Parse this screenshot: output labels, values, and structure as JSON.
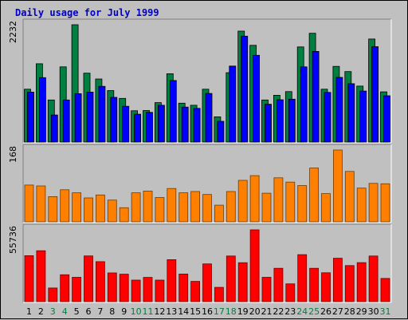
{
  "chart_title": "Daily usage for July 1999",
  "colors": {
    "background": "#c0c0c0",
    "title": "#0000c8",
    "hits": "#008040",
    "files": "#0000ff",
    "sites": "#ff8000",
    "kbytes": "#ff0000",
    "weekday_label": "#000000",
    "weekend_label": "#008040"
  },
  "chart_data": [
    {
      "type": "bar",
      "panel": "top",
      "max_label": "2232",
      "ylim": [
        0,
        2232
      ],
      "categories": [
        "1",
        "2",
        "3",
        "4",
        "5",
        "6",
        "7",
        "8",
        "9",
        "10",
        "11",
        "12",
        "13",
        "14",
        "15",
        "16",
        "17",
        "18",
        "19",
        "20",
        "21",
        "22",
        "23",
        "24",
        "25",
        "26",
        "27",
        "28",
        "29",
        "30",
        "31"
      ],
      "weekend_days": [
        "3",
        "4",
        "10",
        "11",
        "17",
        "18",
        "24",
        "25",
        "31"
      ],
      "series": [
        {
          "color": "#008040",
          "values": [
            1005,
            1490,
            800,
            1430,
            2232,
            1310,
            1200,
            980,
            830,
            595,
            600,
            750,
            1300,
            740,
            700,
            1005,
            480,
            1320,
            2110,
            1840,
            800,
            890,
            960,
            1810,
            2070,
            1005,
            1440,
            1340,
            1065,
            1960,
            955
          ]
        },
        {
          "color": "#0000ff",
          "values": [
            950,
            1225,
            515,
            800,
            920,
            950,
            1060,
            850,
            680,
            530,
            565,
            700,
            1170,
            665,
            640,
            925,
            395,
            1445,
            2015,
            1650,
            720,
            805,
            815,
            1430,
            1725,
            945,
            1230,
            1110,
            970,
            1815,
            880
          ]
        }
      ]
    },
    {
      "type": "bar",
      "panel": "middle",
      "max_label": "168",
      "ylim": [
        0,
        168
      ],
      "categories": [
        "1",
        "2",
        "3",
        "4",
        "5",
        "6",
        "7",
        "8",
        "9",
        "10",
        "11",
        "12",
        "13",
        "14",
        "15",
        "16",
        "17",
        "18",
        "19",
        "20",
        "21",
        "22",
        "23",
        "24",
        "25",
        "26",
        "27",
        "28",
        "29",
        "30",
        "31"
      ],
      "series": [
        {
          "color": "#ff8000",
          "values": [
            86,
            84,
            59,
            75,
            68,
            56,
            63,
            51,
            33,
            68,
            72,
            57,
            78,
            68,
            71,
            64,
            39,
            71,
            97,
            108,
            67,
            103,
            93,
            85,
            126,
            66,
            168,
            118,
            79,
            90,
            89
          ]
        }
      ]
    },
    {
      "type": "bar",
      "panel": "bottom",
      "max_label": "55736",
      "ylim": [
        0,
        55736
      ],
      "categories": [
        "1",
        "2",
        "3",
        "4",
        "5",
        "6",
        "7",
        "8",
        "9",
        "10",
        "11",
        "12",
        "13",
        "14",
        "15",
        "16",
        "17",
        "18",
        "19",
        "20",
        "21",
        "22",
        "23",
        "24",
        "25",
        "26",
        "27",
        "28",
        "29",
        "30",
        "31"
      ],
      "series": [
        {
          "color": "#ff0000",
          "values": [
            35700,
            39500,
            10600,
            20900,
            18900,
            35500,
            31000,
            22300,
            21300,
            16700,
            18800,
            16700,
            32600,
            21400,
            15700,
            29300,
            11100,
            35400,
            30200,
            55736,
            18900,
            25900,
            13800,
            36500,
            25900,
            22400,
            33700,
            28000,
            30300,
            35400,
            18000
          ]
        }
      ]
    }
  ]
}
